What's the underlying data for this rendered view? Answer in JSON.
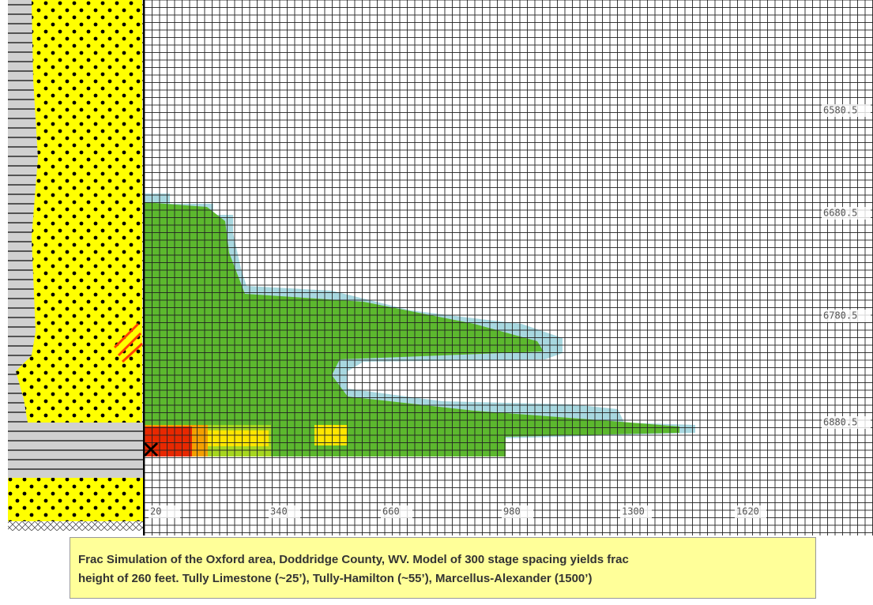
{
  "figure": {
    "depth_labels": [
      "6580.5",
      "6680.5",
      "6780.5",
      "6880.5"
    ],
    "distance_labels": [
      "20",
      "340",
      "660",
      "980",
      "1300",
      "1620"
    ],
    "caption": {
      "line1": "Frac Simulation of the Oxford area, Doddridge County, WV.    Model of 300 stage spacing yields frac",
      "line2": "height of 260 feet.    Tully Limestone (~25’),  Tully-Hamilton (~55’), Marcellus-Alexander (1500’)"
    }
  }
}
